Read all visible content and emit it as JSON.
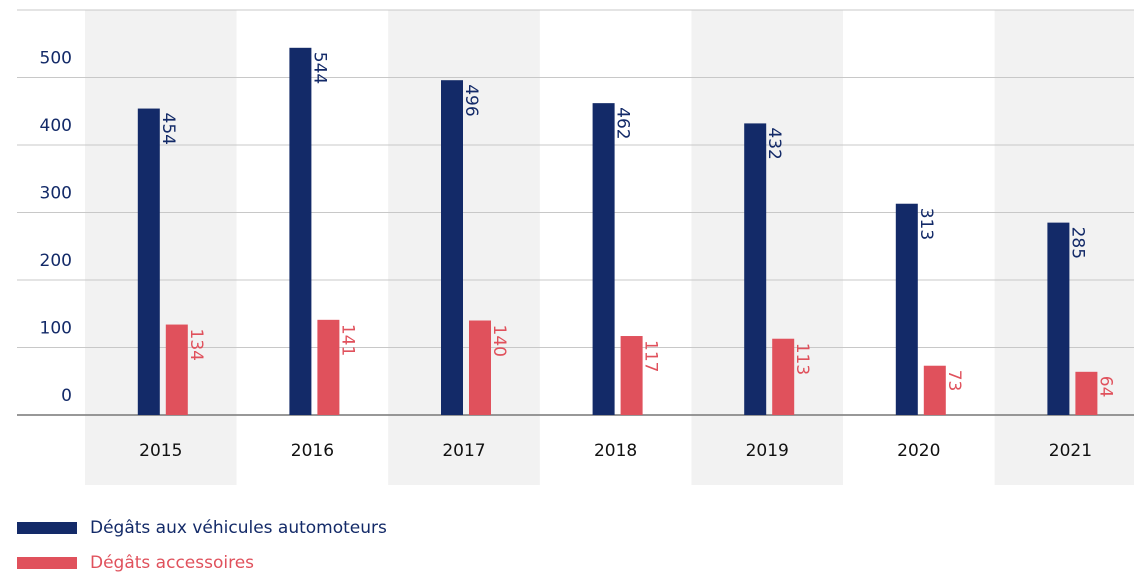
{
  "chart_data": {
    "type": "bar",
    "categories": [
      "2015",
      "2016",
      "2017",
      "2018",
      "2019",
      "2020",
      "2021"
    ],
    "series": [
      {
        "name": "Dégâts aux véhicules automoteurs",
        "color": "#132a68",
        "values": [
          454,
          544,
          496,
          462,
          432,
          313,
          285
        ]
      },
      {
        "name": "Dégâts accessoires",
        "color": "#e0515c",
        "values": [
          134,
          141,
          140,
          117,
          113,
          73,
          64
        ]
      }
    ],
    "ylim": [
      0,
      600
    ],
    "yticks": [
      0,
      100,
      200,
      300,
      400,
      500
    ],
    "grid": true,
    "legend": "bottom-left"
  }
}
